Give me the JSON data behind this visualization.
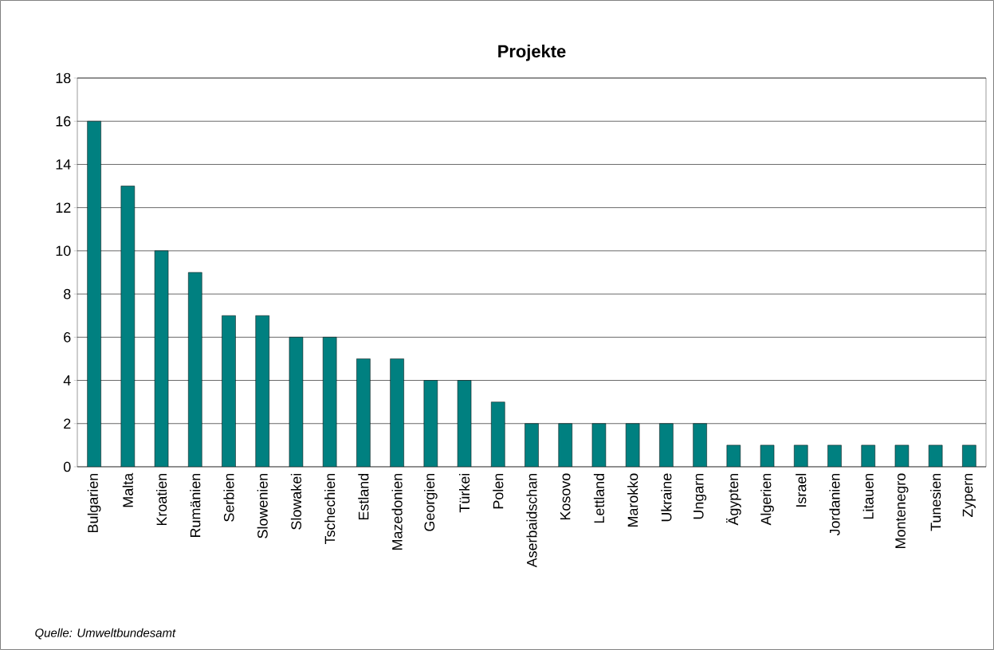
{
  "chart_data": {
    "type": "bar",
    "title": "Projekte",
    "categories": [
      "Bulgarien",
      "Malta",
      "Kroatien",
      "Rumänien",
      "Serbien",
      "Slowenien",
      "Slowakei",
      "Tschechien",
      "Estland",
      "Mazedonien",
      "Georgien",
      "Türkei",
      "Polen",
      "Aserbaidschan",
      "Kosovo",
      "Lettland",
      "Marokko",
      "Ukraine",
      "Ungarn",
      "Ägypten",
      "Algerien",
      "Israel",
      "Jordanien",
      "Litauen",
      "Montenegro",
      "Tunesien",
      "Zypern"
    ],
    "values": [
      16,
      13,
      10,
      9,
      7,
      7,
      6,
      6,
      5,
      5,
      4,
      4,
      3,
      2,
      2,
      2,
      2,
      2,
      2,
      1,
      1,
      1,
      1,
      1,
      1,
      1,
      1
    ],
    "color": "#008080",
    "ylim": [
      0,
      18
    ],
    "yticks": [
      0,
      2,
      4,
      6,
      8,
      10,
      12,
      14,
      16,
      18
    ],
    "grid": "y",
    "annotations": [
      "Quelle: Umweltbundesamt"
    ]
  }
}
